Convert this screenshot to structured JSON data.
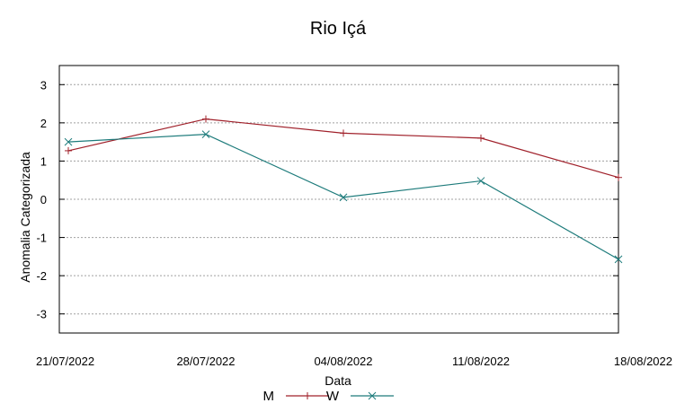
{
  "chart_data": {
    "type": "line",
    "title": "Rio Içá",
    "xlabel": "Data",
    "ylabel": "Anomalia Categorizada",
    "categories": [
      "21/07/2022",
      "28/07/2022",
      "04/08/2022",
      "11/08/2022",
      "18/08/2022"
    ],
    "yticks": [
      "3",
      "2",
      "1",
      "0",
      "-1",
      "-2",
      "-3"
    ],
    "ytick_values": [
      3,
      2,
      1,
      0,
      -1,
      -2,
      -3
    ],
    "ylim": [
      -3.5,
      3.5
    ],
    "grid": true,
    "legend_position": "bottom",
    "series": [
      {
        "name": "M",
        "marker": "+",
        "color": "#a0202a",
        "values": [
          1.27,
          2.1,
          1.73,
          1.6,
          0.57
        ]
      },
      {
        "name": "W",
        "marker": "x",
        "color": "#1d7b7b",
        "values": [
          1.5,
          1.7,
          0.05,
          0.48,
          -1.57
        ]
      }
    ]
  }
}
